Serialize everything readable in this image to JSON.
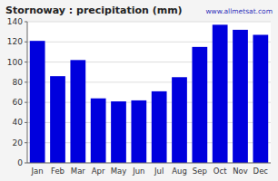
{
  "chart_data": {
    "type": "bar",
    "title": "Stornoway : precipitation (mm)",
    "categories": [
      "Jan",
      "Feb",
      "Mar",
      "Apr",
      "May",
      "Jun",
      "Jul",
      "Aug",
      "Sep",
      "Oct",
      "Nov",
      "Dec"
    ],
    "values": [
      121,
      86,
      102,
      64,
      61,
      62,
      71,
      85,
      115,
      137,
      132,
      127
    ],
    "color": "#0000DD",
    "ylim": [
      0,
      140
    ],
    "yticks": [
      0,
      20,
      40,
      60,
      80,
      100,
      120,
      140
    ],
    "grid": true,
    "annotations": [
      "www.allmetsat.com"
    ]
  }
}
